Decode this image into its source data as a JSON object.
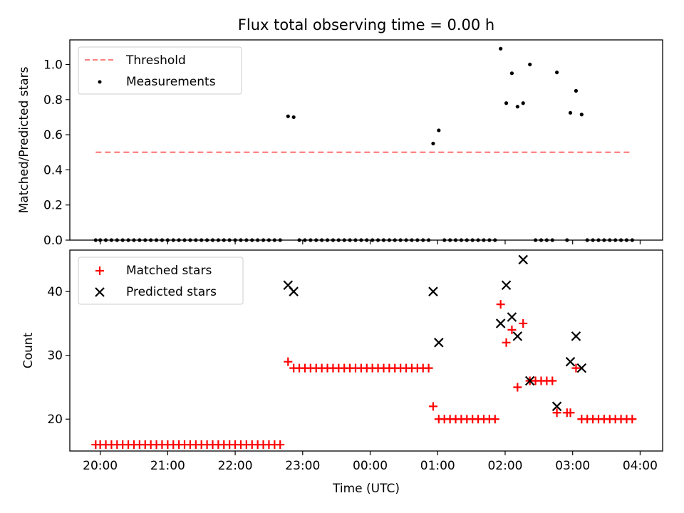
{
  "figure": {
    "title": "Flux total observing time = 0.00 h"
  },
  "chart_data": [
    {
      "type": "scatter",
      "title": "Flux total observing time = 0.00 h",
      "xlabel": "",
      "ylabel": "Matched/Predicted stars",
      "xlim": [
        "19:33",
        "04:20"
      ],
      "ylim": [
        0,
        1.14
      ],
      "x_ticks": [
        "20:00",
        "21:00",
        "22:00",
        "23:00",
        "00:00",
        "01:00",
        "02:00",
        "03:00",
        "04:00"
      ],
      "y_ticks": [
        "0.0",
        "0.2",
        "0.4",
        "0.6",
        "0.8",
        "1.0"
      ],
      "legend_position": "top-left",
      "grid": false,
      "series": [
        {
          "name": "Threshold",
          "kind": "dashed-line",
          "color": "#ff7f7f",
          "x": [
            "19:56",
            "03:52"
          ],
          "values": [
            0.5,
            0.5
          ]
        },
        {
          "name": "Measurements",
          "kind": "points",
          "color": "#000000",
          "points": [
            [
              "19:56",
              0
            ],
            [
              "20:00",
              0
            ],
            [
              "20:05",
              0
            ],
            [
              "20:10",
              0
            ],
            [
              "20:15",
              0
            ],
            [
              "20:20",
              0
            ],
            [
              "20:25",
              0
            ],
            [
              "20:30",
              0
            ],
            [
              "20:35",
              0
            ],
            [
              "20:40",
              0
            ],
            [
              "20:45",
              0
            ],
            [
              "20:50",
              0
            ],
            [
              "20:55",
              0
            ],
            [
              "21:00",
              0
            ],
            [
              "21:05",
              0
            ],
            [
              "21:10",
              0
            ],
            [
              "21:15",
              0
            ],
            [
              "21:20",
              0
            ],
            [
              "21:25",
              0
            ],
            [
              "21:30",
              0
            ],
            [
              "21:35",
              0
            ],
            [
              "21:40",
              0
            ],
            [
              "21:45",
              0
            ],
            [
              "21:50",
              0
            ],
            [
              "21:55",
              0
            ],
            [
              "22:00",
              0
            ],
            [
              "22:05",
              0
            ],
            [
              "22:10",
              0
            ],
            [
              "22:15",
              0
            ],
            [
              "22:20",
              0
            ],
            [
              "22:25",
              0
            ],
            [
              "22:30",
              0
            ],
            [
              "22:35",
              0
            ],
            [
              "22:40",
              0
            ],
            [
              "22:47",
              0.705
            ],
            [
              "22:52",
              0.7
            ],
            [
              "22:57",
              0
            ],
            [
              "23:02",
              0
            ],
            [
              "23:07",
              0
            ],
            [
              "23:12",
              0
            ],
            [
              "23:17",
              0
            ],
            [
              "23:22",
              0
            ],
            [
              "23:27",
              0
            ],
            [
              "23:32",
              0
            ],
            [
              "23:37",
              0
            ],
            [
              "23:42",
              0
            ],
            [
              "23:47",
              0
            ],
            [
              "23:52",
              0
            ],
            [
              "23:57",
              0
            ],
            [
              "00:02",
              0
            ],
            [
              "00:07",
              0
            ],
            [
              "00:12",
              0
            ],
            [
              "00:17",
              0
            ],
            [
              "00:22",
              0
            ],
            [
              "00:27",
              0
            ],
            [
              "00:32",
              0
            ],
            [
              "00:37",
              0
            ],
            [
              "00:42",
              0
            ],
            [
              "00:47",
              0
            ],
            [
              "00:52",
              0
            ],
            [
              "00:56",
              0.55
            ],
            [
              "01:01",
              0.625
            ],
            [
              "01:06",
              0
            ],
            [
              "01:11",
              0
            ],
            [
              "01:16",
              0
            ],
            [
              "01:21",
              0
            ],
            [
              "01:26",
              0
            ],
            [
              "01:31",
              0
            ],
            [
              "01:36",
              0
            ],
            [
              "01:41",
              0
            ],
            [
              "01:46",
              0
            ],
            [
              "01:51",
              0
            ],
            [
              "01:56",
              1.09
            ],
            [
              "02:01",
              0.78
            ],
            [
              "02:06",
              0.95
            ],
            [
              "02:11",
              0.76
            ],
            [
              "02:16",
              0.78
            ],
            [
              "02:22",
              1.0
            ],
            [
              "02:27",
              0
            ],
            [
              "02:32",
              0
            ],
            [
              "02:37",
              0
            ],
            [
              "02:42",
              0
            ],
            [
              "02:46",
              0.955
            ],
            [
              "02:55",
              0
            ],
            [
              "02:58",
              0.725
            ],
            [
              "03:03",
              0.85
            ],
            [
              "03:08",
              0.715
            ],
            [
              "03:13",
              0
            ],
            [
              "03:18",
              0
            ],
            [
              "03:23",
              0
            ],
            [
              "03:28",
              0
            ],
            [
              "03:33",
              0
            ],
            [
              "03:38",
              0
            ],
            [
              "03:43",
              0
            ],
            [
              "03:48",
              0
            ],
            [
              "03:53",
              0
            ]
          ]
        }
      ]
    },
    {
      "type": "scatter",
      "title": "",
      "xlabel": "Time (UTC)",
      "ylabel": "Count",
      "xlim": [
        "19:33",
        "04:20"
      ],
      "ylim": [
        15,
        46.5
      ],
      "x_ticks": [
        "20:00",
        "21:00",
        "22:00",
        "23:00",
        "00:00",
        "01:00",
        "02:00",
        "03:00",
        "04:00"
      ],
      "y_ticks": [
        "20",
        "30",
        "40"
      ],
      "legend_position": "top-left",
      "grid": false,
      "series": [
        {
          "name": "Matched stars",
          "kind": "plus",
          "color": "#ff0000",
          "points": [
            [
              "19:56",
              16
            ],
            [
              "20:00",
              16
            ],
            [
              "20:05",
              16
            ],
            [
              "20:10",
              16
            ],
            [
              "20:15",
              16
            ],
            [
              "20:20",
              16
            ],
            [
              "20:25",
              16
            ],
            [
              "20:30",
              16
            ],
            [
              "20:35",
              16
            ],
            [
              "20:40",
              16
            ],
            [
              "20:45",
              16
            ],
            [
              "20:50",
              16
            ],
            [
              "20:55",
              16
            ],
            [
              "21:00",
              16
            ],
            [
              "21:05",
              16
            ],
            [
              "21:10",
              16
            ],
            [
              "21:15",
              16
            ],
            [
              "21:20",
              16
            ],
            [
              "21:25",
              16
            ],
            [
              "21:30",
              16
            ],
            [
              "21:35",
              16
            ],
            [
              "21:40",
              16
            ],
            [
              "21:45",
              16
            ],
            [
              "21:50",
              16
            ],
            [
              "21:55",
              16
            ],
            [
              "22:00",
              16
            ],
            [
              "22:05",
              16
            ],
            [
              "22:10",
              16
            ],
            [
              "22:15",
              16
            ],
            [
              "22:20",
              16
            ],
            [
              "22:25",
              16
            ],
            [
              "22:30",
              16
            ],
            [
              "22:35",
              16
            ],
            [
              "22:40",
              16
            ],
            [
              "22:47",
              29
            ],
            [
              "22:52",
              28
            ],
            [
              "22:57",
              28
            ],
            [
              "23:02",
              28
            ],
            [
              "23:07",
              28
            ],
            [
              "23:12",
              28
            ],
            [
              "23:17",
              28
            ],
            [
              "23:22",
              28
            ],
            [
              "23:27",
              28
            ],
            [
              "23:32",
              28
            ],
            [
              "23:37",
              28
            ],
            [
              "23:42",
              28
            ],
            [
              "23:47",
              28
            ],
            [
              "23:52",
              28
            ],
            [
              "23:57",
              28
            ],
            [
              "00:02",
              28
            ],
            [
              "00:07",
              28
            ],
            [
              "00:12",
              28
            ],
            [
              "00:17",
              28
            ],
            [
              "00:22",
              28
            ],
            [
              "00:27",
              28
            ],
            [
              "00:32",
              28
            ],
            [
              "00:37",
              28
            ],
            [
              "00:42",
              28
            ],
            [
              "00:47",
              28
            ],
            [
              "00:52",
              28
            ],
            [
              "00:56",
              22
            ],
            [
              "01:01",
              20
            ],
            [
              "01:06",
              20
            ],
            [
              "01:11",
              20
            ],
            [
              "01:16",
              20
            ],
            [
              "01:21",
              20
            ],
            [
              "01:26",
              20
            ],
            [
              "01:31",
              20
            ],
            [
              "01:36",
              20
            ],
            [
              "01:41",
              20
            ],
            [
              "01:46",
              20
            ],
            [
              "01:51",
              20
            ],
            [
              "01:56",
              38
            ],
            [
              "02:01",
              32
            ],
            [
              "02:06",
              34
            ],
            [
              "02:11",
              25
            ],
            [
              "02:16",
              35
            ],
            [
              "02:22",
              26
            ],
            [
              "02:27",
              26
            ],
            [
              "02:32",
              26
            ],
            [
              "02:37",
              26
            ],
            [
              "02:42",
              26
            ],
            [
              "02:46",
              21
            ],
            [
              "02:55",
              21
            ],
            [
              "02:58",
              21
            ],
            [
              "03:03",
              28
            ],
            [
              "03:08",
              20
            ],
            [
              "03:13",
              20
            ],
            [
              "03:18",
              20
            ],
            [
              "03:23",
              20
            ],
            [
              "03:28",
              20
            ],
            [
              "03:33",
              20
            ],
            [
              "03:38",
              20
            ],
            [
              "03:43",
              20
            ],
            [
              "03:48",
              20
            ],
            [
              "03:53",
              20
            ]
          ]
        },
        {
          "name": "Predicted stars",
          "kind": "x",
          "color": "#000000",
          "points": [
            [
              "22:47",
              41
            ],
            [
              "22:52",
              40
            ],
            [
              "00:56",
              40
            ],
            [
              "01:01",
              32
            ],
            [
              "01:56",
              35
            ],
            [
              "02:01",
              41
            ],
            [
              "02:06",
              36
            ],
            [
              "02:11",
              33
            ],
            [
              "02:16",
              45
            ],
            [
              "02:22",
              26
            ],
            [
              "02:46",
              22
            ],
            [
              "02:58",
              29
            ],
            [
              "03:03",
              33
            ],
            [
              "03:08",
              28
            ]
          ]
        }
      ]
    }
  ]
}
